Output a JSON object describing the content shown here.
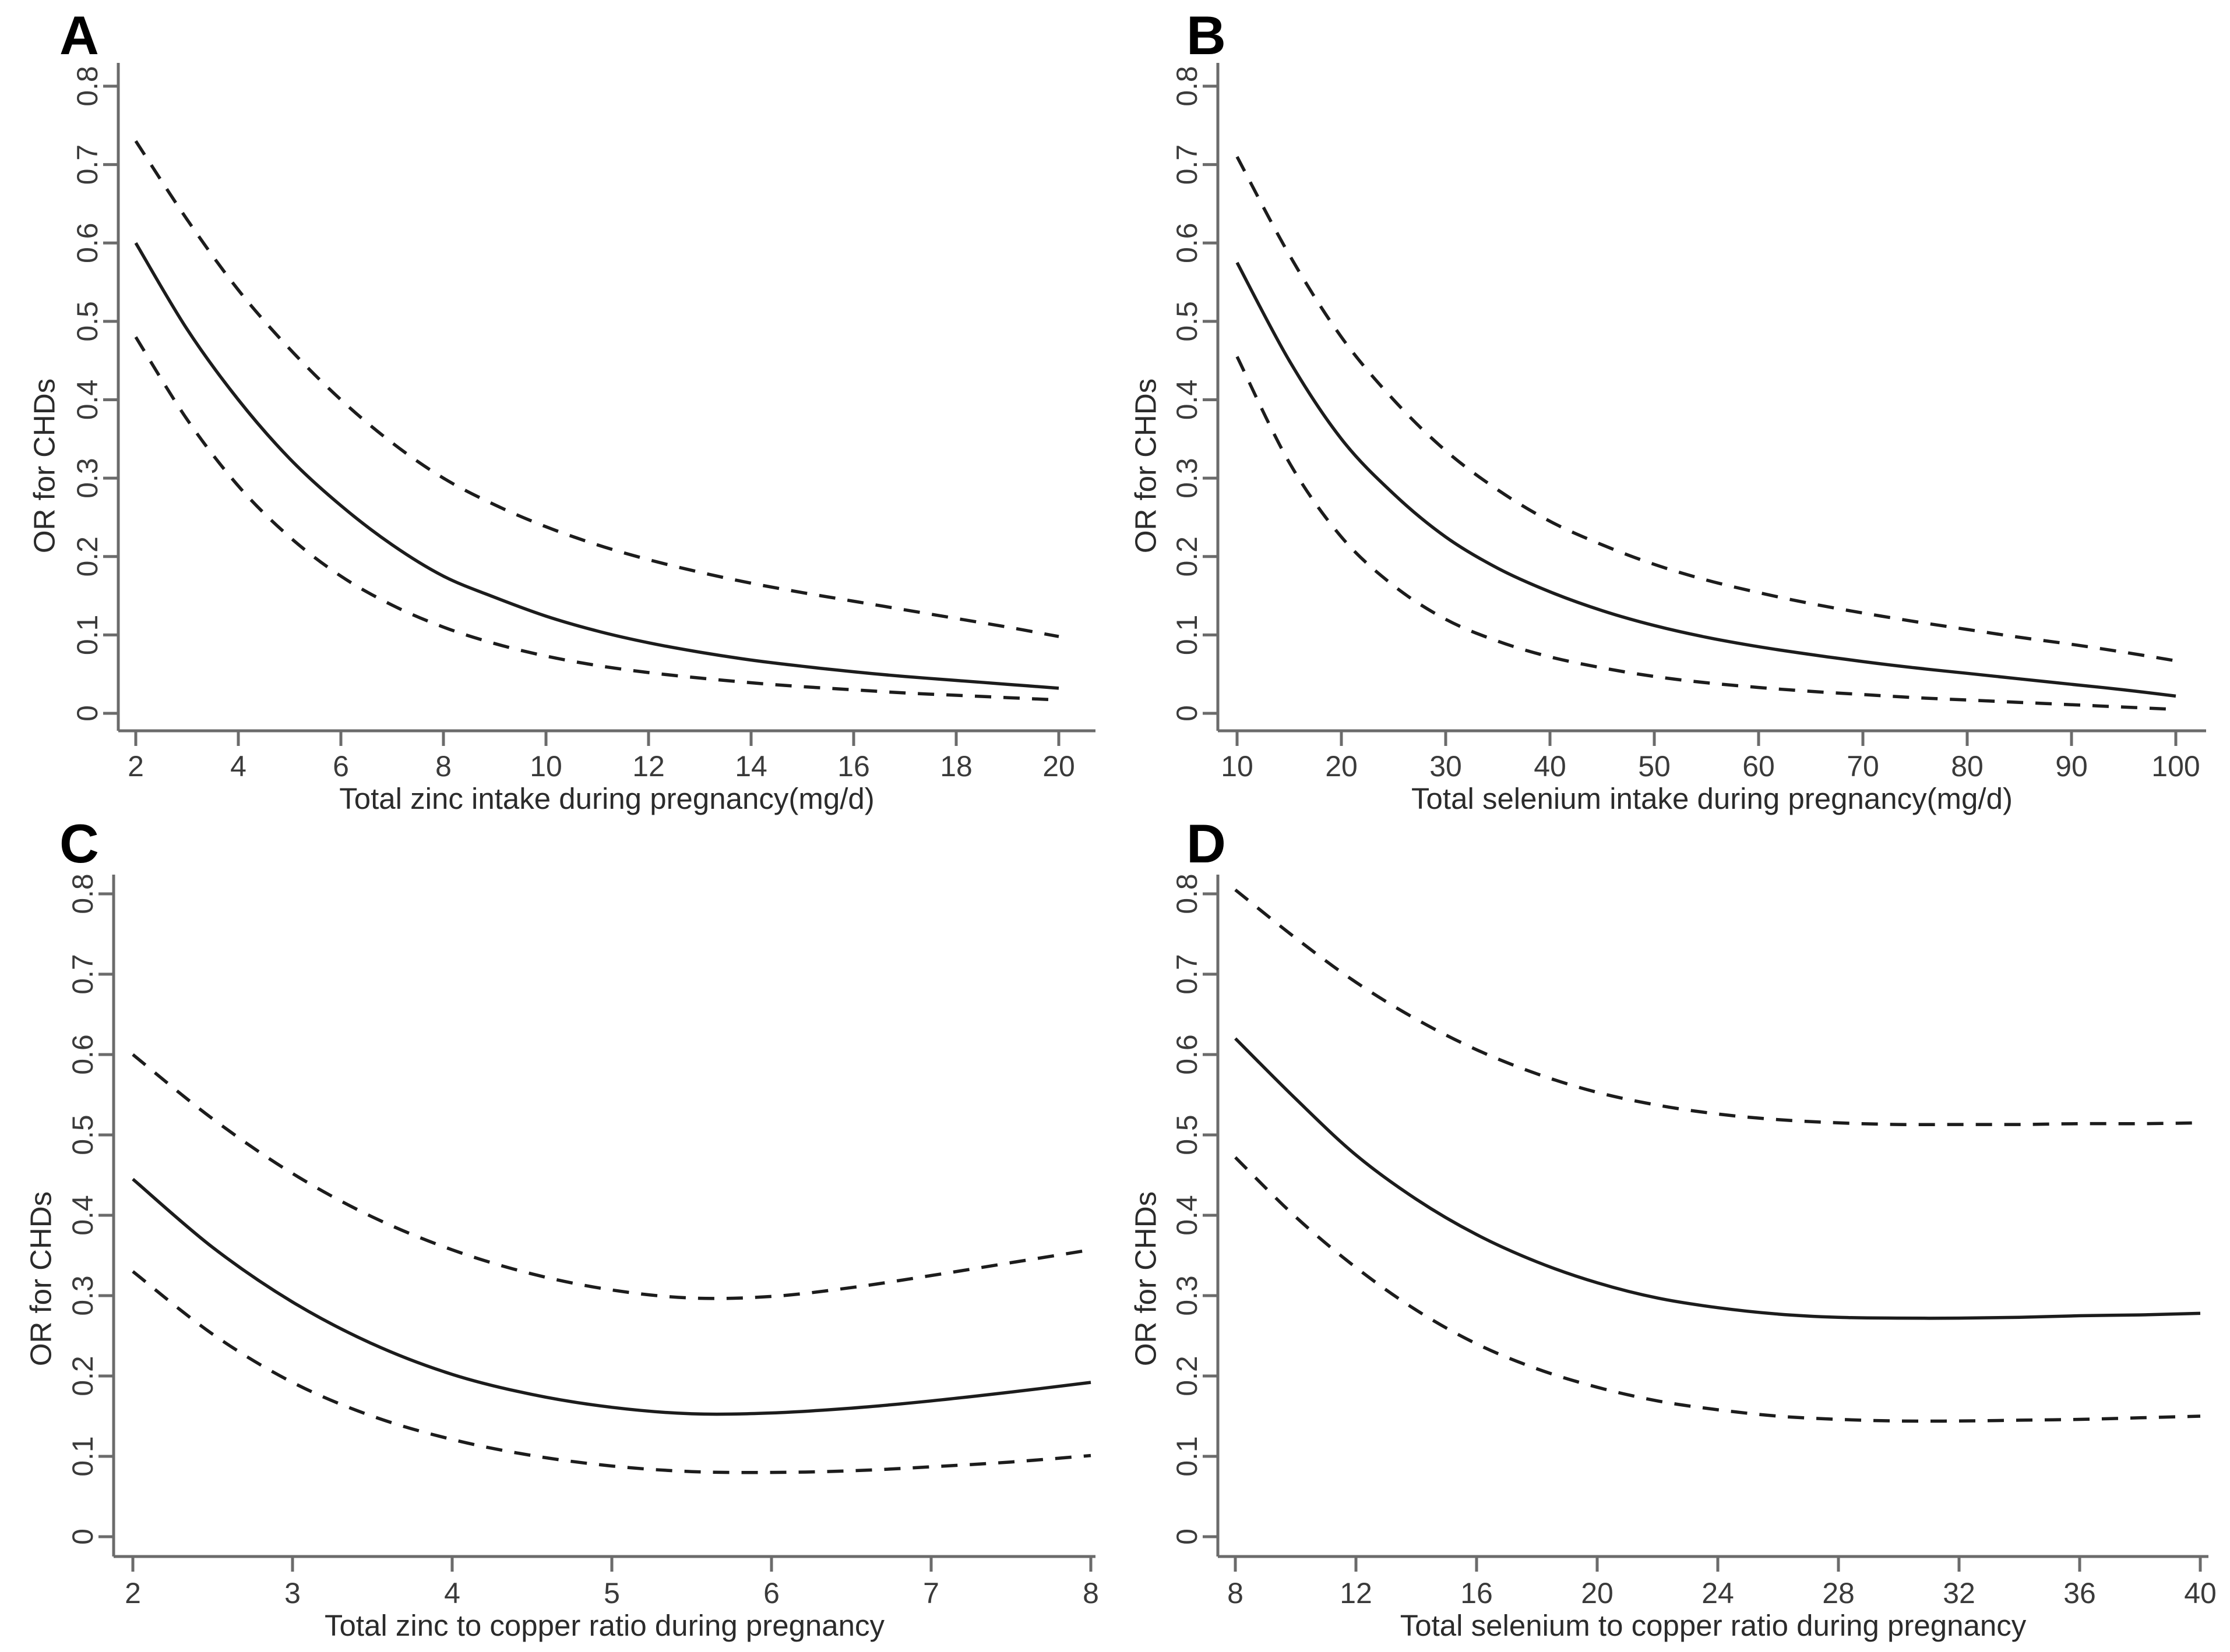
{
  "figure": {
    "background": "#ffffff",
    "panels": [
      "A",
      "B",
      "C",
      "D"
    ]
  },
  "colors": {
    "curve": "#1c1c1c",
    "axis": "#6b6b6b",
    "tick_label": "#3a3a3a",
    "axis_title": "#2b2b2b",
    "panel_letter": "#000000"
  },
  "chart_data": [
    {
      "panel_label": "A",
      "type": "line",
      "title": "",
      "xlabel": "Total zinc intake during pregnancy(mg/d)",
      "ylabel": "OR for CHDs",
      "xlim": [
        2,
        20
      ],
      "ylim": [
        0,
        0.8
      ],
      "x_ticks": [
        2,
        4,
        6,
        8,
        10,
        12,
        14,
        16,
        18,
        20
      ],
      "y_ticks": [
        0,
        0.1,
        0.2,
        0.3,
        0.4,
        0.5,
        0.6,
        0.7,
        0.8
      ],
      "grid": false,
      "legend": "none",
      "x": [
        2,
        3,
        4,
        5,
        6,
        7,
        8,
        9,
        10,
        11,
        12,
        13,
        14,
        15,
        16,
        17,
        18,
        19,
        20
      ],
      "series": [
        {
          "name": "odds-ratio-estimate",
          "style": "solid",
          "values": [
            0.6,
            0.49,
            0.4,
            0.325,
            0.265,
            0.215,
            0.175,
            0.148,
            0.124,
            0.105,
            0.09,
            0.078,
            0.068,
            0.06,
            0.053,
            0.047,
            0.042,
            0.037,
            0.032
          ]
        },
        {
          "name": "upper-95ci",
          "style": "dashed",
          "values": [
            0.73,
            0.63,
            0.54,
            0.465,
            0.4,
            0.345,
            0.3,
            0.266,
            0.238,
            0.215,
            0.196,
            0.18,
            0.166,
            0.154,
            0.143,
            0.132,
            0.121,
            0.11,
            0.098
          ]
        },
        {
          "name": "lower-95ci",
          "style": "dashed",
          "values": [
            0.48,
            0.375,
            0.29,
            0.225,
            0.175,
            0.138,
            0.11,
            0.089,
            0.073,
            0.061,
            0.052,
            0.045,
            0.039,
            0.034,
            0.03,
            0.026,
            0.023,
            0.02,
            0.017
          ]
        }
      ]
    },
    {
      "panel_label": "B",
      "type": "line",
      "title": "",
      "xlabel": "Total selenium intake during pregnancy(mg/d)",
      "ylabel": "OR for CHDs",
      "xlim": [
        10,
        100
      ],
      "ylim": [
        0,
        0.8
      ],
      "x_ticks": [
        10,
        20,
        30,
        40,
        50,
        60,
        70,
        80,
        90,
        100
      ],
      "y_ticks": [
        0,
        0.1,
        0.2,
        0.3,
        0.4,
        0.5,
        0.6,
        0.7,
        0.8
      ],
      "grid": false,
      "legend": "none",
      "x": [
        10,
        15,
        20,
        25,
        30,
        35,
        40,
        45,
        50,
        55,
        60,
        65,
        70,
        75,
        80,
        85,
        90,
        95,
        100
      ],
      "series": [
        {
          "name": "odds-ratio-estimate",
          "style": "solid",
          "values": [
            0.575,
            0.45,
            0.35,
            0.28,
            0.225,
            0.185,
            0.155,
            0.131,
            0.112,
            0.097,
            0.085,
            0.075,
            0.066,
            0.058,
            0.051,
            0.044,
            0.037,
            0.03,
            0.022
          ]
        },
        {
          "name": "upper-95ci",
          "style": "dashed",
          "values": [
            0.71,
            0.585,
            0.48,
            0.4,
            0.335,
            0.285,
            0.245,
            0.215,
            0.19,
            0.17,
            0.154,
            0.14,
            0.128,
            0.117,
            0.107,
            0.097,
            0.088,
            0.078,
            0.067
          ]
        },
        {
          "name": "lower-95ci",
          "style": "dashed",
          "values": [
            0.455,
            0.32,
            0.225,
            0.163,
            0.12,
            0.092,
            0.072,
            0.058,
            0.047,
            0.039,
            0.033,
            0.028,
            0.024,
            0.02,
            0.017,
            0.014,
            0.011,
            0.008,
            0.005
          ]
        }
      ]
    },
    {
      "panel_label": "C",
      "type": "line",
      "title": "",
      "xlabel": "Total zinc to copper ratio during pregnancy",
      "ylabel": "OR for CHDs",
      "xlim": [
        2,
        8
      ],
      "ylim": [
        0,
        0.8
      ],
      "x_ticks": [
        2,
        3,
        4,
        5,
        6,
        7,
        8
      ],
      "y_ticks": [
        0,
        0.1,
        0.2,
        0.3,
        0.4,
        0.5,
        0.6,
        0.7,
        0.8
      ],
      "grid": false,
      "legend": "none",
      "x": [
        2,
        2.5,
        3,
        3.5,
        4,
        4.5,
        5,
        5.5,
        6,
        6.5,
        7,
        7.5,
        8
      ],
      "series": [
        {
          "name": "odds-ratio-estimate",
          "style": "solid",
          "values": [
            0.445,
            0.36,
            0.292,
            0.24,
            0.202,
            0.177,
            0.161,
            0.153,
            0.154,
            0.16,
            0.169,
            0.18,
            0.192
          ]
        },
        {
          "name": "upper-95ci",
          "style": "dashed",
          "values": [
            0.6,
            0.52,
            0.452,
            0.398,
            0.357,
            0.327,
            0.307,
            0.297,
            0.299,
            0.31,
            0.325,
            0.341,
            0.357
          ]
        },
        {
          "name": "lower-95ci",
          "style": "dashed",
          "values": [
            0.33,
            0.252,
            0.192,
            0.15,
            0.121,
            0.101,
            0.088,
            0.081,
            0.08,
            0.082,
            0.087,
            0.093,
            0.101
          ]
        }
      ]
    },
    {
      "panel_label": "D",
      "type": "line",
      "title": "",
      "xlabel": "Total selenium to copper ratio during pregnancy",
      "ylabel": "OR for CHDs",
      "xlim": [
        8,
        40
      ],
      "ylim": [
        0,
        0.8
      ],
      "x_ticks": [
        8,
        12,
        16,
        20,
        24,
        28,
        32,
        36,
        40
      ],
      "y_ticks": [
        0,
        0.1,
        0.2,
        0.3,
        0.4,
        0.5,
        0.6,
        0.7,
        0.8
      ],
      "grid": false,
      "legend": "none",
      "x": [
        8,
        10,
        12,
        14,
        16,
        18,
        20,
        22,
        24,
        26,
        28,
        30,
        32,
        34,
        36,
        38,
        40
      ],
      "series": [
        {
          "name": "odds-ratio-estimate",
          "style": "solid",
          "values": [
            0.62,
            0.545,
            0.475,
            0.42,
            0.376,
            0.342,
            0.316,
            0.297,
            0.285,
            0.277,
            0.273,
            0.272,
            0.272,
            0.273,
            0.275,
            0.276,
            0.278
          ]
        },
        {
          "name": "upper-95ci",
          "style": "dashed",
          "values": [
            0.805,
            0.745,
            0.69,
            0.644,
            0.606,
            0.576,
            0.553,
            0.537,
            0.526,
            0.519,
            0.515,
            0.513,
            0.513,
            0.513,
            0.514,
            0.514,
            0.515
          ]
        },
        {
          "name": "lower-95ci",
          "style": "dashed",
          "values": [
            0.472,
            0.398,
            0.335,
            0.282,
            0.24,
            0.209,
            0.186,
            0.169,
            0.158,
            0.15,
            0.146,
            0.144,
            0.144,
            0.145,
            0.146,
            0.148,
            0.15
          ]
        }
      ]
    }
  ]
}
